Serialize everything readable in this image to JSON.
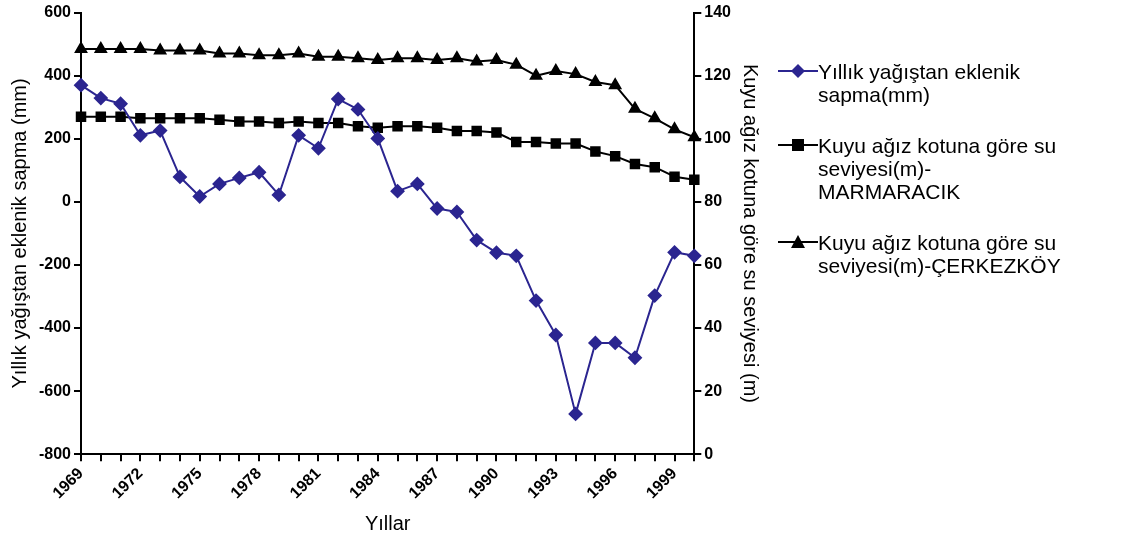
{
  "chart_data": {
    "type": "line",
    "xlabel": "Yıllar",
    "ylabel": "Yıllık yağıştan eklenik sapma (mm)",
    "y2label": "Kuyu ağız kotuna göre su seviyesi (m)",
    "categories": [
      "1969",
      null,
      null,
      "1972",
      null,
      null,
      "1975",
      null,
      null,
      "1978",
      null,
      null,
      "1981",
      null,
      null,
      "1984",
      null,
      null,
      "1987",
      null,
      null,
      "1990",
      null,
      null,
      "1993",
      null,
      null,
      "1996",
      null,
      null,
      "1999",
      null
    ],
    "ylim": [
      -800,
      600
    ],
    "yticks": [
      -800,
      -600,
      -400,
      -200,
      0,
      200,
      400,
      600
    ],
    "y2lim": [
      0,
      140
    ],
    "y2ticks": [
      0,
      20,
      40,
      60,
      80,
      100,
      120,
      140
    ],
    "grid": false,
    "legend": "right",
    "line_style": "solid",
    "series": [
      {
        "name": "Yıllık yağıştan eklenik sapma(mm)",
        "color": "#2b2590",
        "marker": "diamond",
        "values": [
          370,
          329,
          311,
          211,
          226,
          79,
          17,
          57,
          76,
          94,
          22,
          211,
          170,
          326,
          293,
          201,
          34,
          57,
          -21,
          -32,
          -121,
          -161,
          -171,
          -313,
          -422,
          -672,
          -447,
          -447,
          -494,
          -297,
          -160,
          -171
        ]
      },
      {
        "name": "Kuyu ağız kotuna göre su seviyesi(m)-MARMARACIK",
        "color": "#000000",
        "marker": "square",
        "axis": "y2",
        "values": [
          107,
          107,
          107,
          106.5,
          106.5,
          106.5,
          106.5,
          106,
          105.5,
          105.5,
          105,
          105.5,
          105,
          105,
          104,
          103.5,
          104,
          104,
          103.5,
          102.5,
          102.5,
          102,
          99,
          99,
          98.5,
          98.5,
          96,
          94.5,
          92,
          91,
          88,
          87
        ]
      },
      {
        "name": "Kuyu ağız kotuna göre su seviyesi(m)-ÇERKEZKÖY",
        "color": "#000000",
        "marker": "triangle",
        "axis": "y2",
        "values": [
          128.5,
          128.5,
          128.5,
          128.5,
          128,
          128,
          128,
          127,
          127,
          126.5,
          126.5,
          127,
          126,
          126,
          125.5,
          125,
          125.5,
          125.5,
          125,
          125.5,
          124.5,
          125,
          123.5,
          120,
          121.5,
          120.5,
          118,
          117,
          109.5,
          106.5,
          103,
          100.5
        ]
      }
    ]
  }
}
